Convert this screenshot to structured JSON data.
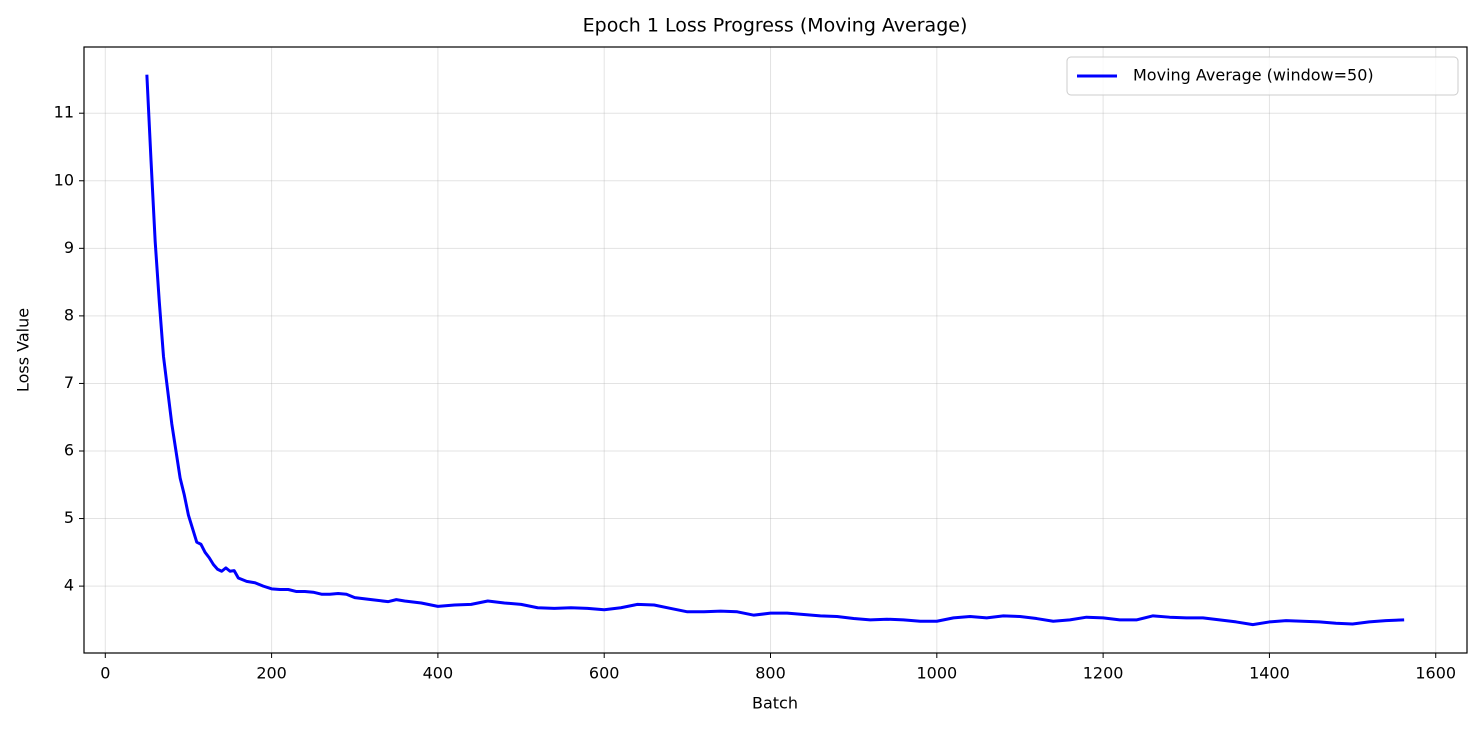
{
  "chart_data": {
    "type": "line",
    "title": "Epoch 1 Loss Progress (Moving Average)",
    "x_label": "Batch",
    "y_label": "Loss Value",
    "xlim": [
      -25.6,
      1637.6
    ],
    "ylim": [
      3.01,
      11.98
    ],
    "xticks": [
      0,
      200,
      400,
      600,
      800,
      1000,
      1200,
      1400,
      1600
    ],
    "yticks": [
      4,
      5,
      6,
      7,
      8,
      9,
      10,
      11
    ],
    "grid": true,
    "legend": "upper right",
    "x": [
      50,
      55,
      60,
      65,
      70,
      75,
      80,
      85,
      90,
      95,
      100,
      105,
      110,
      115,
      120,
      125,
      130,
      135,
      140,
      145,
      150,
      155,
      160,
      170,
      180,
      190,
      200,
      210,
      220,
      230,
      240,
      250,
      260,
      270,
      280,
      290,
      300,
      320,
      340,
      350,
      360,
      380,
      400,
      420,
      440,
      460,
      480,
      500,
      520,
      540,
      560,
      580,
      600,
      620,
      640,
      660,
      680,
      700,
      720,
      740,
      760,
      780,
      800,
      820,
      840,
      860,
      880,
      900,
      920,
      940,
      960,
      980,
      1000,
      1020,
      1040,
      1060,
      1080,
      1100,
      1120,
      1140,
      1160,
      1180,
      1200,
      1220,
      1240,
      1260,
      1280,
      1300,
      1320,
      1340,
      1360,
      1380,
      1400,
      1420,
      1440,
      1460,
      1480,
      1500,
      1520,
      1540,
      1562
    ],
    "series": [
      {
        "name": "Moving Average (window=50)",
        "color": "#0000ff",
        "values": [
          11.57,
          10.3,
          9.1,
          8.2,
          7.4,
          6.9,
          6.4,
          6.0,
          5.6,
          5.35,
          5.05,
          4.85,
          4.65,
          4.62,
          4.5,
          4.42,
          4.32,
          4.25,
          4.22,
          4.27,
          4.22,
          4.23,
          4.12,
          4.07,
          4.05,
          4.0,
          3.96,
          3.95,
          3.95,
          3.92,
          3.92,
          3.91,
          3.88,
          3.88,
          3.89,
          3.88,
          3.83,
          3.8,
          3.77,
          3.8,
          3.78,
          3.75,
          3.7,
          3.72,
          3.73,
          3.78,
          3.75,
          3.73,
          3.68,
          3.67,
          3.68,
          3.67,
          3.65,
          3.68,
          3.73,
          3.72,
          3.67,
          3.62,
          3.62,
          3.63,
          3.62,
          3.57,
          3.6,
          3.6,
          3.58,
          3.56,
          3.55,
          3.52,
          3.5,
          3.51,
          3.5,
          3.48,
          3.48,
          3.53,
          3.55,
          3.53,
          3.56,
          3.55,
          3.52,
          3.48,
          3.5,
          3.54,
          3.53,
          3.5,
          3.5,
          3.56,
          3.54,
          3.53,
          3.53,
          3.5,
          3.47,
          3.43,
          3.47,
          3.49,
          3.48,
          3.47,
          3.45,
          3.44,
          3.47,
          3.49,
          3.5
        ]
      }
    ]
  }
}
